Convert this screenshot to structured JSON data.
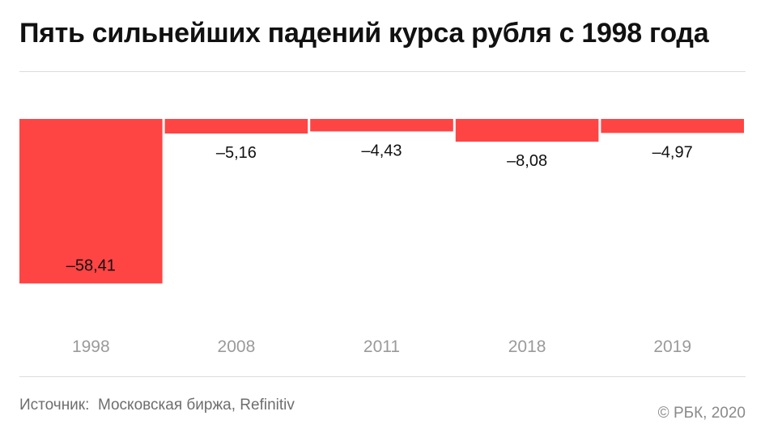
{
  "title": "Пять сильнейших падений курса рубля с 1998 года",
  "footer": {
    "source": "Источник:  Московская биржа, Refinitiv",
    "copyright": "© РБК, 2020"
  },
  "colors": {
    "bar": "#ff4444",
    "value_label": "#111111",
    "category_label": "#9a9a9a",
    "rule": "#dcdcdc"
  },
  "chart_data": {
    "type": "bar",
    "categories": [
      "1998",
      "2008",
      "2011",
      "2018",
      "2019"
    ],
    "values": [
      -58.41,
      -5.16,
      -4.43,
      -8.08,
      -4.97
    ],
    "value_labels": [
      "–58,41",
      "–5,16",
      "–4,43",
      "–8,08",
      "–4,97"
    ],
    "title": "Пять сильнейших падений курса рубля с 1998 года",
    "xlabel": "",
    "ylabel": "",
    "ylim": [
      -62,
      0
    ],
    "grid": false,
    "legend": "none"
  }
}
